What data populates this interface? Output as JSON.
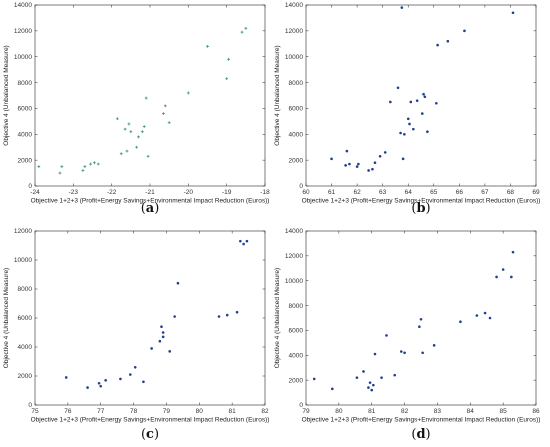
{
  "chart_data": [
    {
      "type": "scatter",
      "panel_label": "a",
      "xlabel": "Objective 1+2+3 (Profit+Energy Savings+Environmental Impact Reduction (Euros))",
      "ylabel": "Objective 4 (Unbalanced Measure)",
      "xlim": [
        -24,
        -18
      ],
      "ylim": [
        0,
        14000
      ],
      "xticks": [
        -24,
        -23,
        -22,
        -21,
        -20,
        -19,
        -18
      ],
      "yticks": [
        0,
        2000,
        4000,
        6000,
        8000,
        10000,
        12000,
        14000
      ],
      "marker_color": "#4a9a7a",
      "marker": "plus",
      "x": [
        -23.9,
        -23.35,
        -23.3,
        -22.75,
        -22.7,
        -22.55,
        -22.45,
        -22.35,
        -21.85,
        -21.75,
        -21.65,
        -21.6,
        -21.55,
        -21.5,
        -21.35,
        -21.3,
        -21.2,
        -21.15,
        -21.1,
        -21.05,
        -20.65,
        -20.6,
        -20.5,
        -20.0,
        -19.5,
        -19.0,
        -18.95,
        -18.6,
        -18.5
      ],
      "y": [
        1500,
        1000,
        1500,
        1200,
        1500,
        1700,
        1800,
        1700,
        5200,
        2500,
        4400,
        2700,
        4800,
        4200,
        3000,
        3800,
        4200,
        4600,
        6800,
        2300,
        5600,
        6200,
        4900,
        7200,
        10800,
        8300,
        9800,
        11900,
        12200
      ]
    },
    {
      "type": "scatter",
      "panel_label": "b",
      "xlabel": "Objective 1+2+3 (Profit+Energy Savings+Environmental Impact Reduction (Euros))",
      "ylabel": "Objective 4 (Unbalanced Measure)",
      "xlim": [
        60,
        69
      ],
      "ylim": [
        0,
        14000
      ],
      "xticks": [
        60,
        61,
        62,
        63,
        64,
        65,
        66,
        67,
        68,
        69
      ],
      "yticks": [
        0,
        2000,
        4000,
        6000,
        8000,
        10000,
        12000,
        14000
      ],
      "marker_color": "#1f3f8f",
      "marker": "dot",
      "x": [
        61.0,
        61.55,
        61.6,
        61.7,
        62.0,
        62.05,
        62.45,
        62.6,
        62.7,
        62.9,
        63.1,
        63.3,
        63.6,
        63.7,
        63.75,
        63.8,
        63.85,
        64.0,
        64.05,
        64.1,
        64.2,
        64.35,
        64.55,
        64.6,
        64.65,
        64.75,
        65.1,
        65.15,
        65.55,
        66.2,
        68.1
      ],
      "y": [
        2100,
        1600,
        2700,
        1700,
        1500,
        1700,
        1200,
        1300,
        1800,
        2300,
        2600,
        6500,
        7600,
        4100,
        13800,
        2100,
        4000,
        5200,
        4800,
        6500,
        4400,
        6600,
        5600,
        7100,
        6900,
        4200,
        6400,
        10900,
        11200,
        12000,
        13400
      ]
    },
    {
      "type": "scatter",
      "panel_label": "c",
      "xlabel": "Objective 1+2+3 (Profit+Energy Savings+Environmental Impact Reduction (Euros))",
      "ylabel": "Objective 4 (Unbalanced Measure)",
      "xlim": [
        75,
        82
      ],
      "ylim": [
        0,
        12000
      ],
      "xticks": [
        75,
        76,
        77,
        78,
        79,
        80,
        81,
        82
      ],
      "yticks": [
        0,
        2000,
        4000,
        6000,
        8000,
        10000,
        12000
      ],
      "marker_color": "#1f3f8f",
      "marker": "dot",
      "x": [
        75.95,
        76.6,
        76.95,
        77.0,
        77.15,
        77.6,
        77.9,
        78.05,
        78.3,
        78.55,
        78.8,
        78.85,
        78.9,
        78.9,
        79.1,
        79.25,
        79.35,
        80.6,
        80.85,
        81.15,
        81.25,
        81.35,
        81.45
      ],
      "y": [
        1900,
        1200,
        1500,
        1300,
        1700,
        1800,
        2100,
        2600,
        1600,
        3900,
        4400,
        5400,
        4700,
        5000,
        3700,
        6100,
        8400,
        6100,
        6200,
        6400,
        11300,
        11100,
        11300
      ]
    },
    {
      "type": "scatter",
      "panel_label": "d",
      "xlabel": "Objective 1+2+3 (Profit+Energy Savings+Environmental Impact Reduction (Euros))",
      "ylabel": "Objective 4 (Unbalanced Measure)",
      "xlim": [
        79,
        86
      ],
      "ylim": [
        0,
        14000
      ],
      "xticks": [
        79,
        80,
        81,
        82,
        83,
        84,
        85,
        86
      ],
      "yticks": [
        0,
        2000,
        4000,
        6000,
        8000,
        10000,
        12000,
        14000
      ],
      "marker_color": "#1f3f8f",
      "marker": "dot",
      "x": [
        79.25,
        79.8,
        80.55,
        80.75,
        80.9,
        80.95,
        81.0,
        81.05,
        81.1,
        81.3,
        81.45,
        81.7,
        81.9,
        82.0,
        82.45,
        82.5,
        82.55,
        82.9,
        83.7,
        84.2,
        84.45,
        84.6,
        84.8,
        85.0,
        85.25,
        85.3
      ],
      "y": [
        2100,
        1300,
        2200,
        2700,
        1400,
        1800,
        1200,
        1600,
        4100,
        2200,
        5600,
        2400,
        4300,
        4200,
        6300,
        6900,
        4200,
        4800,
        6700,
        7200,
        7400,
        7000,
        10300,
        10900,
        10300,
        12300
      ]
    }
  ]
}
